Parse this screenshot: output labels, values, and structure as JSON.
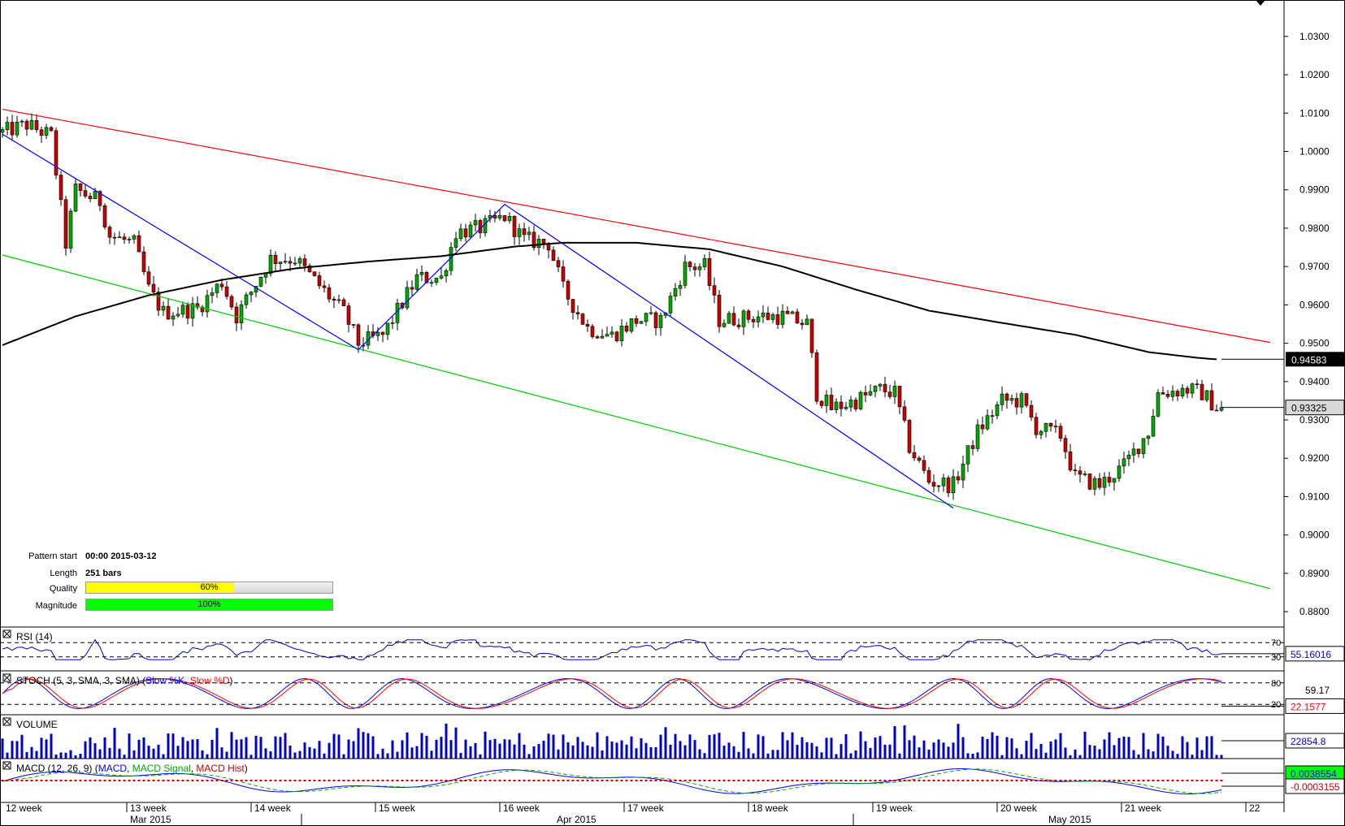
{
  "colors": {
    "upper_trendline": "#ff0000",
    "lower_trendline": "#00cc00",
    "zigzag": "#0000ff",
    "moving_average": "#000000",
    "candle_up": "#00aa00",
    "candle_down": "#cc0000",
    "rsi_line": "#0000cc",
    "stoch_k": "#0000ff",
    "stoch_d": "#ff0000",
    "volume_bars": "#0000cc",
    "macd_line": "#0000ff",
    "macd_signal": "#00aa00",
    "macd_hist": "#cc0000",
    "quality_fill": "#ffff00",
    "magnitude_fill": "#00ff00"
  },
  "pattern_info": {
    "start_label": "Pattern start",
    "start_value": "00:00 2015-03-12",
    "length_label": "Length",
    "length_value": "251 bars",
    "quality_label": "Quality",
    "quality_text": "60%",
    "quality_fraction": 0.6,
    "magnitude_label": "Magnitude",
    "magnitude_text": "100%",
    "magnitude_fraction": 1.0
  },
  "chart_data": {
    "type": "candlestick",
    "price_axis": {
      "ticks": [
        "1.0300",
        "1.0200",
        "1.0100",
        "1.0000",
        "0.9900",
        "0.9800",
        "0.9700",
        "0.9600",
        "0.9500",
        "0.9400",
        "0.9300",
        "0.9200",
        "0.9100",
        "0.9000",
        "0.8900",
        "0.8800"
      ],
      "ylim": [
        0.876,
        1.0395
      ]
    },
    "x_axis": {
      "week_labels": [
        "12 week",
        "13 week",
        "14 week",
        "15 week",
        "16 week",
        "17 week",
        "18 week",
        "19 week",
        "20 week",
        "21 week",
        "22"
      ],
      "month_labels": [
        "Mar 2015",
        "Apr 2015",
        "May 2015"
      ],
      "bar_count": 251
    },
    "price_labels": {
      "ma_value": "0.94583",
      "last_price": "0.93325"
    },
    "trendlines": {
      "upper": [
        [
          0,
          1.011
        ],
        [
          260,
          0.9502
        ]
      ],
      "lower": [
        [
          0,
          0.973
        ],
        [
          260,
          0.886
        ]
      ]
    },
    "zigzag": [
      [
        0,
        1.0045
      ],
      [
        73,
        0.9483
      ],
      [
        103,
        0.9862
      ],
      [
        195,
        0.907
      ]
    ],
    "ma_curve": [
      [
        0,
        0.9495
      ],
      [
        15,
        0.957
      ],
      [
        30,
        0.9625
      ],
      [
        45,
        0.9665
      ],
      [
        60,
        0.9695
      ],
      [
        75,
        0.9713
      ],
      [
        90,
        0.9727
      ],
      [
        105,
        0.9752
      ],
      [
        115,
        0.9762
      ],
      [
        130,
        0.9762
      ],
      [
        145,
        0.9745
      ],
      [
        160,
        0.97
      ],
      [
        175,
        0.964
      ],
      [
        190,
        0.9585
      ],
      [
        205,
        0.9553
      ],
      [
        220,
        0.9522
      ],
      [
        235,
        0.9477
      ],
      [
        245,
        0.9462
      ],
      [
        249,
        0.9458
      ]
    ],
    "anchors": [
      [
        0,
        1.005
      ],
      [
        5,
        1.007
      ],
      [
        10,
        1.004
      ],
      [
        13,
        0.976
      ],
      [
        15,
        0.99
      ],
      [
        20,
        0.987
      ],
      [
        22,
        0.978
      ],
      [
        27,
        0.976
      ],
      [
        30,
        0.964
      ],
      [
        33,
        0.958
      ],
      [
        40,
        0.959
      ],
      [
        45,
        0.966
      ],
      [
        48,
        0.957
      ],
      [
        55,
        0.972
      ],
      [
        60,
        0.972
      ],
      [
        65,
        0.965
      ],
      [
        70,
        0.958
      ],
      [
        73,
        0.95
      ],
      [
        78,
        0.952
      ],
      [
        85,
        0.967
      ],
      [
        90,
        0.967
      ],
      [
        93,
        0.979
      ],
      [
        98,
        0.98
      ],
      [
        103,
        0.983
      ],
      [
        107,
        0.977
      ],
      [
        112,
        0.976
      ],
      [
        115,
        0.964
      ],
      [
        120,
        0.954
      ],
      [
        125,
        0.952
      ],
      [
        130,
        0.956
      ],
      [
        135,
        0.956
      ],
      [
        140,
        0.97
      ],
      [
        144,
        0.97
      ],
      [
        147,
        0.956
      ],
      [
        155,
        0.957
      ],
      [
        160,
        0.957
      ],
      [
        165,
        0.955
      ],
      [
        167,
        0.937
      ],
      [
        170,
        0.933
      ],
      [
        175,
        0.935
      ],
      [
        180,
        0.938
      ],
      [
        183,
        0.937
      ],
      [
        186,
        0.923
      ],
      [
        190,
        0.914
      ],
      [
        195,
        0.913
      ],
      [
        200,
        0.927
      ],
      [
        205,
        0.935
      ],
      [
        209,
        0.935
      ],
      [
        212,
        0.928
      ],
      [
        217,
        0.926
      ],
      [
        220,
        0.915
      ],
      [
        225,
        0.913
      ],
      [
        230,
        0.918
      ],
      [
        235,
        0.927
      ],
      [
        237,
        0.937
      ],
      [
        243,
        0.938
      ],
      [
        246,
        0.937
      ],
      [
        249,
        0.9333
      ]
    ],
    "indicators": {
      "rsi": {
        "label": "RSI (14)",
        "levels": [
          "70",
          "30"
        ],
        "value": "55.16016",
        "range": [
          0,
          100
        ]
      },
      "stoch": {
        "label": "STOCH (5, 3, SMA, 3, SMA)",
        "k_label": "Slow %K",
        "d_label": "Slow %D",
        "levels": [
          "80",
          "20"
        ],
        "k_value": "59.17",
        "d_value": "22.1577",
        "range": [
          0,
          100
        ]
      },
      "volume": {
        "label": "VOLUME",
        "value": "22854.8"
      },
      "macd": {
        "label": "MACD (12, 26, 9)",
        "macd_label": "MACD",
        "signal_label": "MACD Signal",
        "hist_label": "MACD Hist",
        "value": "0.0038554",
        "signal_value": "-0.0003155"
      }
    }
  }
}
